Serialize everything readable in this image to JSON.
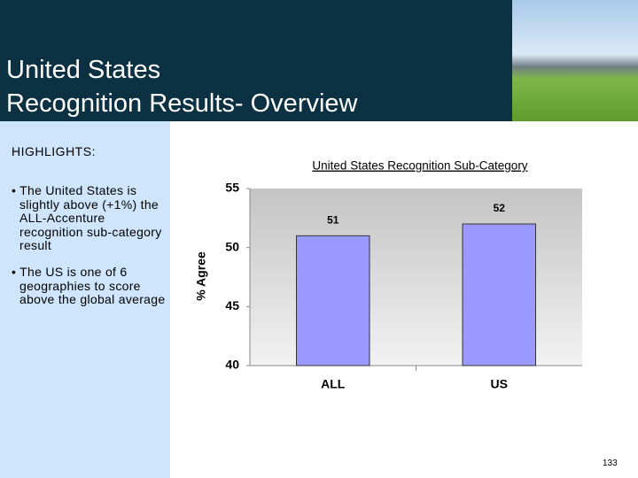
{
  "header": {
    "title": [
      "United States",
      "Recognition Results- Overview"
    ]
  },
  "sidebar": {
    "heading": "HIGHLIGHTS:",
    "bullets": [
      "• The United States is slightly above (+1%) the ALL-Accenture recognition sub-category result",
      "• The US is one of 6 geographies to score above the global average"
    ]
  },
  "page_number": "133",
  "chart_data": {
    "type": "bar",
    "title": "United States Recognition Sub-Category",
    "y_label": "% Agree",
    "categories": [
      "ALL",
      "US"
    ],
    "values": [
      51,
      52
    ],
    "color": "#9999ff",
    "ylim": [
      40,
      55
    ],
    "yticks": [
      40,
      45,
      50,
      55
    ],
    "grid": false
  }
}
